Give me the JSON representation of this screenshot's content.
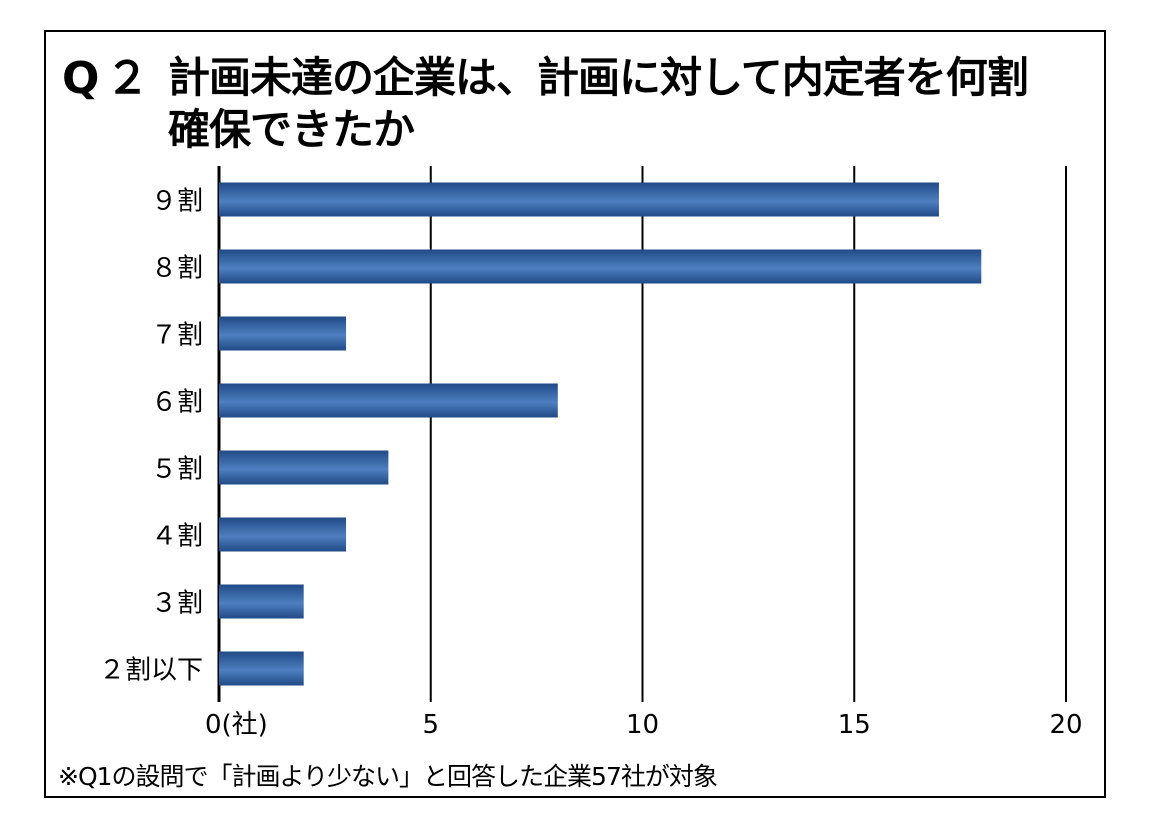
{
  "title": {
    "prefix": "Q２",
    "line1": "計画未達の企業は、計画に対して内定者を何割",
    "line2": "確保できたか"
  },
  "footnote": "※Q1の設問で「計画より少ない」と回答した企業57社が対象",
  "colors": {
    "bar_dark": "#1f4a86",
    "bar_light": "#4f7fc0",
    "grid": "#000000"
  },
  "chart_data": {
    "type": "bar",
    "orientation": "horizontal",
    "categories": [
      "９割",
      "８割",
      "７割",
      "６割",
      "５割",
      "４割",
      "３割",
      "２割以下"
    ],
    "values": [
      17,
      18,
      3,
      8,
      4,
      3,
      2,
      2
    ],
    "xlim": [
      0,
      20
    ],
    "xticks": [
      "0(社)",
      "5",
      "10",
      "15",
      "20"
    ],
    "xtick_values": [
      0,
      5,
      10,
      15,
      20
    ],
    "grid": true,
    "legend": "none"
  }
}
